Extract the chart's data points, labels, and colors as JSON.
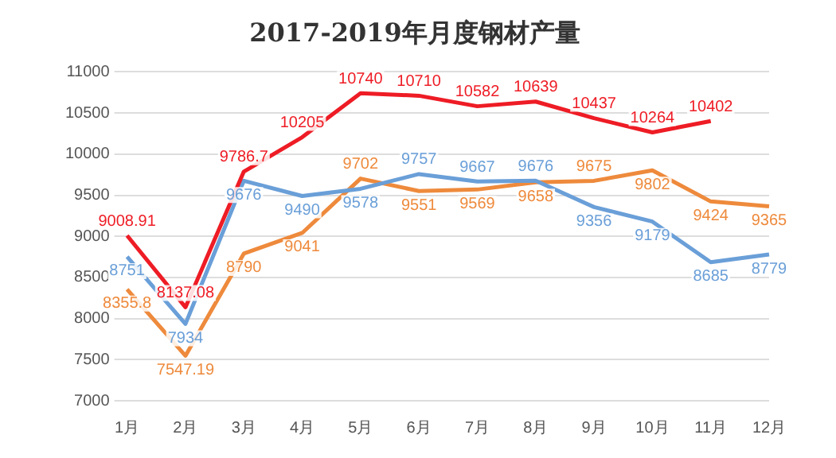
{
  "chart_data": {
    "type": "line",
    "title": "2017-2019年月度钢材产量",
    "categories": [
      "1月",
      "2月",
      "3月",
      "4月",
      "5月",
      "6月",
      "7月",
      "8月",
      "9月",
      "10月",
      "11月",
      "12月"
    ],
    "series": [
      {
        "color": "#ee1c25",
        "values": [
          9008.91,
          8137.08,
          9786.7,
          10205,
          10740,
          10710,
          10582,
          10639,
          10437,
          10264,
          10402,
          null
        ]
      },
      {
        "color": "#6a9fd8",
        "values": [
          8751,
          7934,
          9676,
          9490,
          9578,
          9757,
          9667,
          9676,
          9356,
          9179,
          8685,
          8779
        ]
      },
      {
        "color": "#ee8a3c",
        "values": [
          8355.8,
          7547.19,
          8790,
          9041,
          9702,
          9551,
          9569,
          9658,
          9675,
          9802,
          9424,
          9365
        ]
      }
    ],
    "ylim": [
      7000,
      11000
    ],
    "yticks": [
      7000,
      7500,
      8000,
      8500,
      9000,
      9500,
      10000,
      10500,
      11000
    ],
    "grid": "y",
    "legend": false,
    "marker": "none",
    "line_style": "solid",
    "data_labels": true
  }
}
